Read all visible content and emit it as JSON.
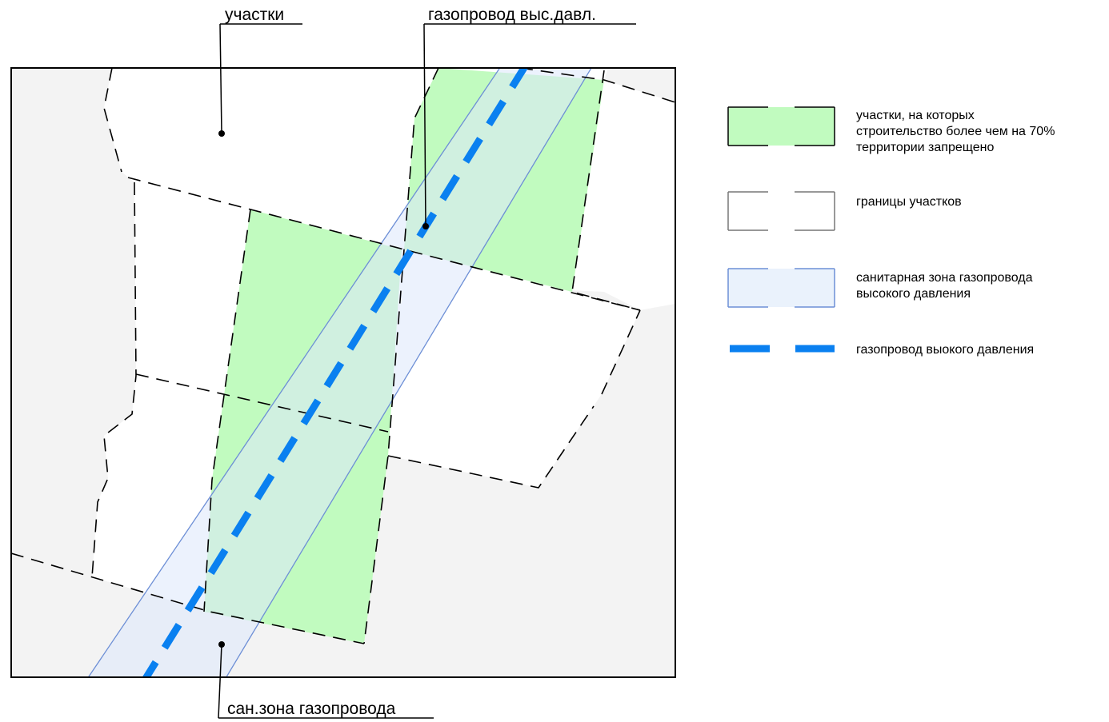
{
  "callouts": {
    "plots": "участки",
    "pipeline": "газопровод выс.давл.",
    "sanitary": "сан.зона газопровода"
  },
  "legend": {
    "restricted": {
      "lines": [
        "участки, на которых",
        "строительство более чем на 70%",
        "территории запрещено"
      ]
    },
    "boundaries": {
      "lines": [
        "границы участков"
      ]
    },
    "sanitary_zone": {
      "lines": [
        "санитарная зона газопровода",
        "высокого давления"
      ]
    },
    "pipeline": {
      "lines": [
        "газопровод выокого давления"
      ]
    }
  },
  "colors": {
    "background_gray": "#f3f3f3",
    "plot_white": "#ffffff",
    "restricted_green": "#c1fbbf",
    "restricted_green_overlap": "#aff5c3",
    "sanitary_blue": "#eaf2fc",
    "sanitary_edge": "#6d8fd6",
    "pipeline_blue": "#0a80f0",
    "boundary": "#000000"
  }
}
